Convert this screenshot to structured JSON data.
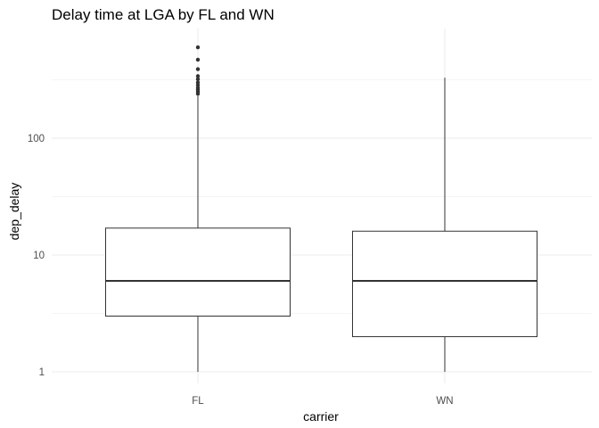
{
  "chart_data": {
    "type": "boxplot",
    "title": "Delay time at LGA by FL and WN",
    "xlabel": "carrier",
    "ylabel": "dep_delay",
    "y_scale": "log10",
    "ylim": [
      0.8,
      700
    ],
    "y_ticks": [
      1,
      10,
      100
    ],
    "y_tick_labels": [
      "1",
      "10",
      "100"
    ],
    "grid": true,
    "categories": [
      "FL",
      "WN"
    ],
    "boxes": [
      {
        "category": "FL",
        "whisker_low": 1,
        "q1": 3,
        "median": 6,
        "q3": 17,
        "whisker_high": 230,
        "outliers": [
          240,
          250,
          260,
          270,
          285,
          300,
          320,
          340,
          390,
          470,
          600
        ]
      },
      {
        "category": "WN",
        "whisker_low": 1,
        "q1": 2,
        "median": 6,
        "q3": 16,
        "whisker_high": 330,
        "outliers": []
      }
    ]
  }
}
